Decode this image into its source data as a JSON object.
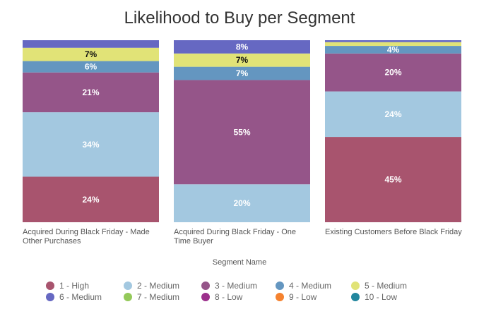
{
  "chart_data": {
    "type": "bar",
    "stacked": true,
    "title": "Likelihood to Buy per Segment",
    "xlabel": "Segment Name",
    "ylabel": "",
    "ylim": [
      0,
      96
    ],
    "legend_position": "bottom",
    "categories": [
      "Acquired During Black Friday - Made Other Purchases",
      "Acquired During Black Friday - One Time Buyer",
      "Existing Customers Before Black Friday"
    ],
    "series": [
      {
        "name": "1 - High",
        "color": "#a8546e",
        "values": [
          24,
          0,
          45
        ]
      },
      {
        "name": "2 - Medium",
        "color": "#a3c8e0",
        "values": [
          34,
          20,
          24
        ]
      },
      {
        "name": "3 - Medium",
        "color": "#955589",
        "values": [
          21,
          55,
          20
        ]
      },
      {
        "name": "4 - Medium",
        "color": "#6496c0",
        "values": [
          6,
          7,
          4
        ]
      },
      {
        "name": "5 - Medium",
        "color": "#e1e377",
        "values": [
          7,
          7,
          2
        ]
      },
      {
        "name": "6 - Medium",
        "color": "#6668c2",
        "values": [
          4,
          8,
          1
        ]
      },
      {
        "name": "7 - Medium",
        "color": "#94c95a",
        "values": [
          0,
          0,
          0
        ]
      },
      {
        "name": "8 - Low",
        "color": "#9c318c",
        "values": [
          0,
          0,
          0
        ]
      },
      {
        "name": "9 - Low",
        "color": "#f5822f",
        "values": [
          0,
          0,
          0
        ]
      },
      {
        "name": "10 - Low",
        "color": "#22869e",
        "values": [
          0,
          0,
          0
        ]
      }
    ],
    "data_labels": [
      [
        "24%",
        "34%",
        "21%",
        "6%",
        "7%",
        ""
      ],
      [
        "",
        "20%",
        "55%",
        "7%",
        "7%",
        "8%"
      ],
      [
        "45%",
        "24%",
        "20%",
        "4%",
        "",
        ""
      ]
    ]
  }
}
